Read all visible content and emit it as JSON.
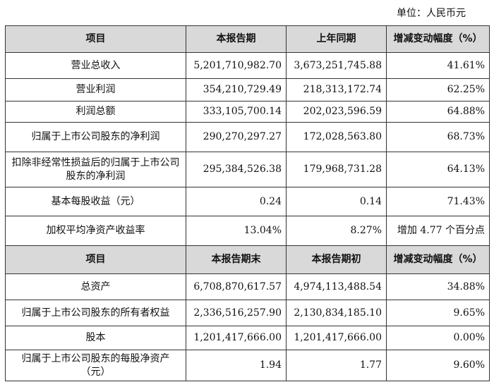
{
  "unit_label": "单位：人民币元",
  "section1": {
    "headers": [
      "项目",
      "本报告期",
      "上年同期",
      "增减变动幅度（%）"
    ],
    "rows": [
      {
        "item": "营业总收入",
        "current": "5,201,710,982.70",
        "prior": "3,673,251,745.88",
        "change": "41.61%"
      },
      {
        "item": "营业利润",
        "current": "354,210,729.49",
        "prior": "218,313,172.74",
        "change": "62.25%"
      },
      {
        "item": "利润总额",
        "current": "333,105,700.14",
        "prior": "202,023,596.59",
        "change": "64.88%"
      },
      {
        "item": "归属于上市公司股东的净利润",
        "current": "290,270,297.27",
        "prior": "172,028,563.80",
        "change": "68.73%"
      },
      {
        "item": "扣除非经常性损益后的归属于上市公司股东的净利润",
        "current": "295,384,526.38",
        "prior": "179,968,731.28",
        "change": "64.13%"
      },
      {
        "item": "基本每股收益（元）",
        "current": "0.24",
        "prior": "0.14",
        "change": "71.43%"
      },
      {
        "item": "加权平均净资产收益率",
        "current": "13.04%",
        "prior": "8.27%",
        "change": "增加 4.77 个百分点"
      }
    ]
  },
  "section2": {
    "headers": [
      "项目",
      "本报告期末",
      "本报告期初",
      "增减变动幅度（%）"
    ],
    "rows": [
      {
        "item": "总资产",
        "current": "6,708,870,617.57",
        "prior": "4,974,113,488.54",
        "change": "34.88%"
      },
      {
        "item": "归属于上市公司股东的所有者权益",
        "current": "2,336,516,257.90",
        "prior": "2,130,834,185.10",
        "change": "9.65%"
      },
      {
        "item": "股本",
        "current": "1,201,417,666.00",
        "prior": "1,201,417,666.00",
        "change": "0.00%"
      },
      {
        "item": "归属于上市公司股东的每股净资产（元）",
        "current": "1.94",
        "prior": "1.77",
        "change": "9.60%"
      }
    ]
  }
}
